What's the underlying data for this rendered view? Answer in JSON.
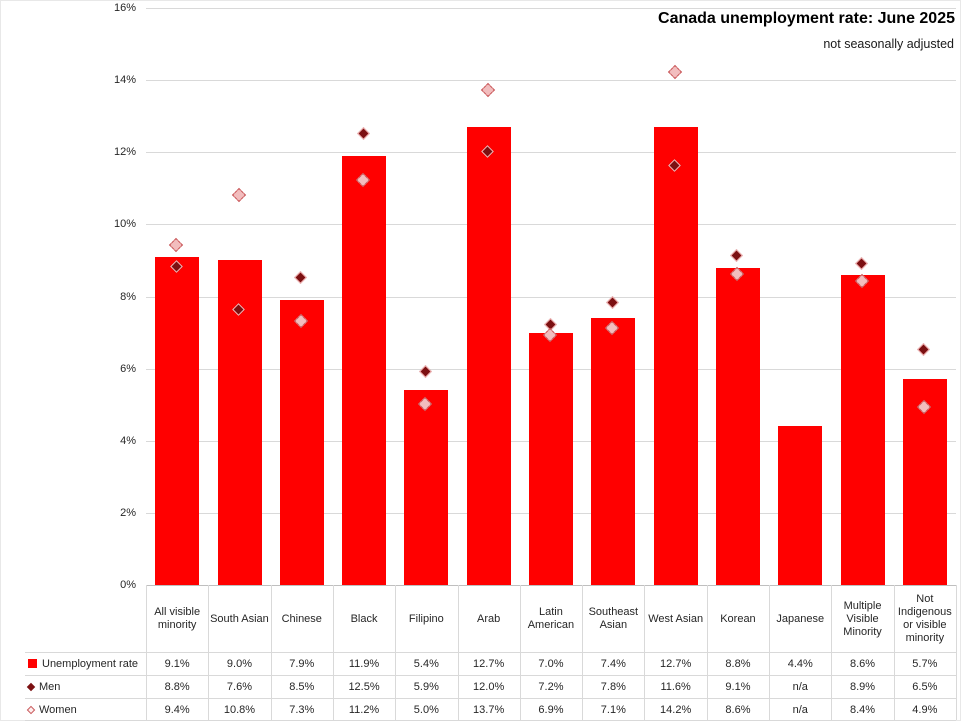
{
  "colors": {
    "bar": "#FF0000",
    "men_fill": "#7C1012",
    "men_border": "#F6B9B9",
    "women_fill": "#F2BDBE",
    "women_border": "#C9585A",
    "grid": "#D9D9D9",
    "axis": "#BFBFBF",
    "text": "#262626"
  },
  "chart_data": {
    "type": "bar",
    "title": "Canada unemployment rate: June 2025",
    "subtitle": "not seasonally adjusted",
    "xlabel": "",
    "ylabel": "",
    "ylim": [
      0,
      16
    ],
    "y_tick_step": 2,
    "y_tick_labels": [
      "0%",
      "2%",
      "4%",
      "6%",
      "8%",
      "10%",
      "12%",
      "14%",
      "16%"
    ],
    "grid": "horizontal",
    "legend_position": "table-left",
    "categories": [
      "All visible minority",
      "South Asian",
      "Chinese",
      "Black",
      "Filipino",
      "Arab",
      "Latin American",
      "Southeast Asian",
      "West Asian",
      "Korean",
      "Japanese",
      "Multiple Visible Minority",
      "Not Indigenous or visible minority"
    ],
    "series": [
      {
        "name": "Unemployment rate",
        "marker": "red-square",
        "render_as": "bars",
        "values": [
          9.1,
          9.0,
          7.9,
          11.9,
          5.4,
          12.7,
          7.0,
          7.4,
          12.7,
          8.8,
          4.4,
          8.6,
          5.7
        ],
        "labels": [
          "9.1%",
          "9.0%",
          "7.9%",
          "11.9%",
          "5.4%",
          "12.7%",
          "7.0%",
          "7.4%",
          "12.7%",
          "8.8%",
          "4.4%",
          "8.6%",
          "5.7%"
        ]
      },
      {
        "name": "Men",
        "marker": "dark-red-diamond",
        "render_as": "points",
        "values": [
          8.8,
          7.6,
          8.5,
          12.5,
          5.9,
          12.0,
          7.2,
          7.8,
          11.6,
          9.1,
          null,
          8.9,
          6.5
        ],
        "labels": [
          "8.8%",
          "7.6%",
          "8.5%",
          "12.5%",
          "5.9%",
          "12.0%",
          "7.2%",
          "7.8%",
          "11.6%",
          "9.1%",
          "n/a",
          "8.9%",
          "6.5%"
        ]
      },
      {
        "name": "Women",
        "marker": "pink-outline-diamond",
        "render_as": "points",
        "values": [
          9.4,
          10.8,
          7.3,
          11.2,
          5.0,
          13.7,
          6.9,
          7.1,
          14.2,
          8.6,
          null,
          8.4,
          4.9
        ],
        "labels": [
          "9.4%",
          "10.8%",
          "7.3%",
          "11.2%",
          "5.0%",
          "13.7%",
          "6.9%",
          "7.1%",
          "14.2%",
          "8.6%",
          "n/a",
          "8.4%",
          "4.9%"
        ]
      }
    ]
  }
}
